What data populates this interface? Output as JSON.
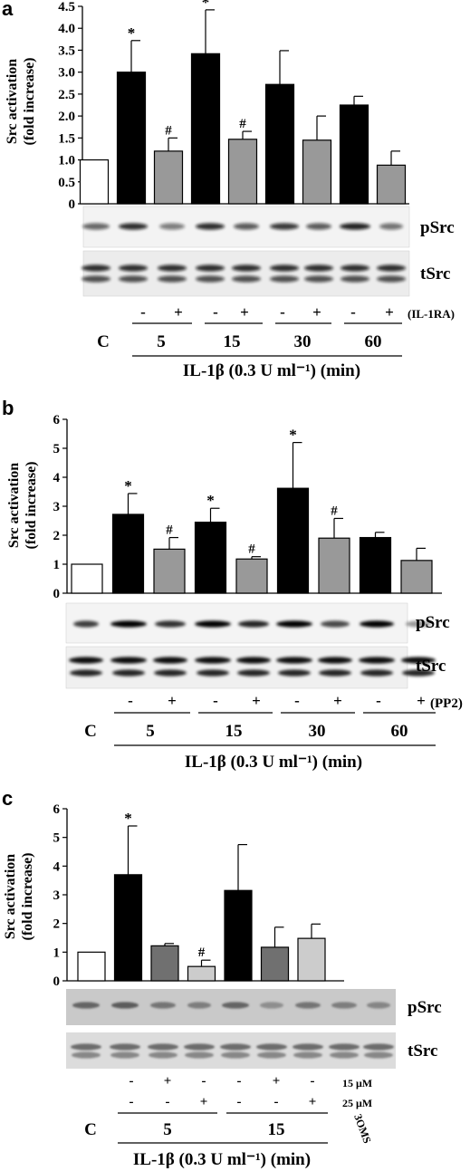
{
  "panels": [
    {
      "letter": "a",
      "ylabel_line1": "Src activation",
      "ylabel_line2": "(fold increase)",
      "blot_labels": [
        "pSrc",
        "tSrc"
      ],
      "treatment_row": [
        "-",
        "+",
        "-",
        "+",
        "-",
        "+",
        "-",
        "+"
      ],
      "inhibitor_label": "(IL-1RA)",
      "control_label": "C",
      "time_labels": [
        "5",
        "15",
        "30",
        "60"
      ],
      "xlabel": "IL-1β (0.3 U ml⁻¹) (min)"
    },
    {
      "letter": "b",
      "ylabel_line1": "Src activation",
      "ylabel_line2": "(fold increase)",
      "blot_labels": [
        "pSrc",
        "tSrc"
      ],
      "treatment_row": [
        "-",
        "+",
        "-",
        "+",
        "-",
        "+",
        "-",
        "+"
      ],
      "inhibitor_label": "(PP2)",
      "control_label": "C",
      "time_labels": [
        "5",
        "15",
        "30",
        "60"
      ],
      "xlabel": "IL-1β (0.3 U ml⁻¹) (min)"
    },
    {
      "letter": "c",
      "ylabel_line1": "Src activation",
      "ylabel_line2": "(fold increase)",
      "blot_labels": [
        "pSrc",
        "tSrc"
      ],
      "treatment_row1": [
        "-",
        "+",
        "-",
        "-",
        "+",
        "-"
      ],
      "treatment_row2": [
        "-",
        "-",
        "+",
        "-",
        "-",
        "+"
      ],
      "conc_labels": [
        "15 μM",
        "25 μM"
      ],
      "inhibitor_label": "3OMS",
      "control_label": "C",
      "time_labels": [
        "5",
        "15"
      ],
      "xlabel": "IL-1β (0.3 U ml⁻¹) (min)"
    }
  ],
  "chart_data": [
    {
      "type": "bar",
      "ylim": [
        0,
        4.5
      ],
      "yticks": [
        "0",
        "0.5",
        "1.0",
        "1.5",
        "2.0",
        "2.5",
        "3.0",
        "3.5",
        "4.0",
        "4.5"
      ],
      "categories": [
        "C",
        "5 -",
        "5 +",
        "15 -",
        "15 +",
        "30 -",
        "30 +",
        "60 -",
        "60 +"
      ],
      "values": [
        1.0,
        3.0,
        1.2,
        3.42,
        1.47,
        2.72,
        1.45,
        2.25,
        0.88
      ],
      "errors": [
        0,
        0.72,
        0.3,
        1.0,
        0.18,
        0.77,
        0.55,
        0.2,
        0.32
      ],
      "fills": [
        "#ffffff",
        "#000000",
        "#999999",
        "#000000",
        "#999999",
        "#000000",
        "#999999",
        "#000000",
        "#999999"
      ],
      "annotations": [
        "",
        "*",
        "#",
        "*",
        "#",
        "",
        "",
        "",
        ""
      ]
    },
    {
      "type": "bar",
      "ylim": [
        0,
        6
      ],
      "yticks": [
        "0",
        "1",
        "2",
        "3",
        "4",
        "5",
        "6"
      ],
      "categories": [
        "C",
        "5 -",
        "5 +",
        "15 -",
        "15 +",
        "30 -",
        "30 +",
        "60 -",
        "60 +"
      ],
      "values": [
        1.0,
        2.72,
        1.52,
        2.45,
        1.18,
        3.62,
        1.9,
        1.92,
        1.13
      ],
      "errors": [
        0,
        0.72,
        0.4,
        0.48,
        0.08,
        1.58,
        0.68,
        0.18,
        0.42
      ],
      "fills": [
        "#ffffff",
        "#000000",
        "#999999",
        "#000000",
        "#999999",
        "#000000",
        "#999999",
        "#000000",
        "#999999"
      ],
      "annotations": [
        "",
        "*",
        "#",
        "*",
        "#",
        "*",
        "#",
        "",
        ""
      ]
    },
    {
      "type": "bar",
      "ylim": [
        0,
        6
      ],
      "yticks": [
        "0",
        "1",
        "2",
        "3",
        "4",
        "5",
        "6"
      ],
      "categories": [
        "C",
        "5 - -",
        "5 + -",
        "5 - +",
        "15 - -",
        "15 + -",
        "15 - +"
      ],
      "values": [
        1.0,
        3.7,
        1.22,
        0.5,
        3.15,
        1.17,
        1.48
      ],
      "errors": [
        0,
        1.7,
        0.08,
        0.22,
        1.6,
        0.7,
        0.5
      ],
      "fills": [
        "#ffffff",
        "#000000",
        "#707070",
        "#cccccc",
        "#000000",
        "#707070",
        "#cccccc"
      ],
      "annotations": [
        "",
        "*",
        "",
        "#",
        "",
        "",
        ""
      ]
    }
  ]
}
